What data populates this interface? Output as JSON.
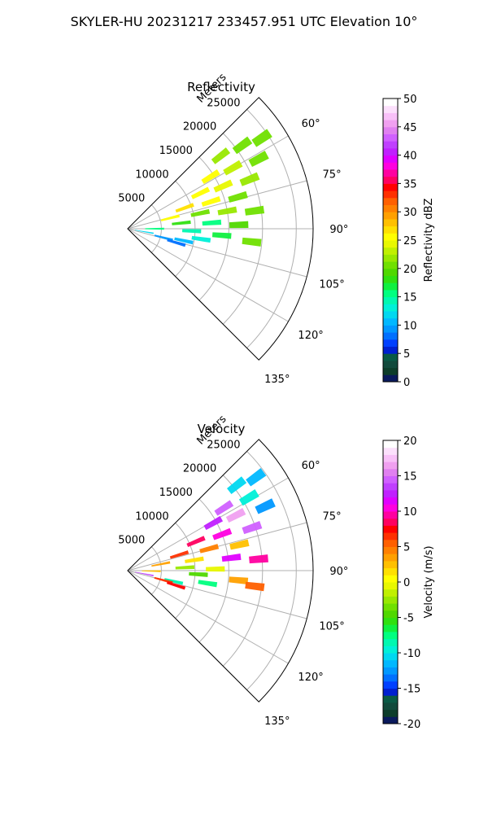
{
  "figure": {
    "title": "SKYLER-HU  20231217  233457.951 UTC Elevation 10°"
  },
  "chart_data": [
    {
      "type": "heatmap",
      "subtype": "polar-sector radar PPI",
      "title": "Reflectivity",
      "radial_axis_label": "Meters",
      "radial_ticks": [
        5000,
        10000,
        15000,
        20000,
        25000
      ],
      "radial_range": [
        0,
        27500
      ],
      "angle_ticks_deg": [
        60,
        75,
        90,
        105,
        120,
        135
      ],
      "angle_tick_labels": [
        "60°",
        "75°",
        "90°",
        "105°",
        "120°",
        "135°"
      ],
      "angle_range_deg": [
        45,
        135
      ],
      "grid": true,
      "colorbar": {
        "label": "Reflectivity dBZ",
        "min": 0,
        "max": 50,
        "ticks": [
          0,
          5,
          10,
          15,
          20,
          25,
          30,
          35,
          40,
          45,
          50
        ],
        "colors": [
          "#0a1a5c",
          "#0d3d2a",
          "#124a3c",
          "#0a5a46",
          "#0020d0",
          "#0040ff",
          "#0070ff",
          "#0098ff",
          "#00b8ff",
          "#00d8f0",
          "#00f0d8",
          "#00f8b0",
          "#00ff80",
          "#10f040",
          "#30e010",
          "#50d800",
          "#70e000",
          "#98e800",
          "#c0f000",
          "#e8f800",
          "#ffff00",
          "#ffe000",
          "#ffc000",
          "#ffa000",
          "#ff8000",
          "#ff6000",
          "#ff3000",
          "#ff0000",
          "#ff0060",
          "#ff00a0",
          "#ff00e0",
          "#e000ff",
          "#c020ff",
          "#c040ff",
          "#d060ff",
          "#e080f0",
          "#f0a0f0",
          "#f8c0f8",
          "#fce0fc",
          "#ffffff"
        ]
      },
      "cells": [
        {
          "az": 52,
          "r": 17500,
          "v": 22
        },
        {
          "az": 54,
          "r": 21000,
          "v": 21
        },
        {
          "az": 56,
          "r": 24000,
          "v": 20
        },
        {
          "az": 58,
          "r": 14500,
          "v": 25
        },
        {
          "az": 60,
          "r": 18000,
          "v": 23
        },
        {
          "az": 62,
          "r": 22000,
          "v": 21
        },
        {
          "az": 64,
          "r": 12000,
          "v": 26
        },
        {
          "az": 66,
          "r": 15500,
          "v": 24
        },
        {
          "az": 68,
          "r": 19500,
          "v": 22
        },
        {
          "az": 70,
          "r": 9000,
          "v": 27
        },
        {
          "az": 72,
          "r": 13000,
          "v": 25
        },
        {
          "az": 74,
          "r": 17000,
          "v": 20
        },
        {
          "az": 76,
          "r": 6500,
          "v": 26
        },
        {
          "az": 78,
          "r": 11000,
          "v": 21
        },
        {
          "az": 80,
          "r": 15000,
          "v": 22
        },
        {
          "az": 82,
          "r": 19000,
          "v": 20
        },
        {
          "az": 84,
          "r": 8000,
          "v": 18
        },
        {
          "az": 86,
          "r": 12500,
          "v": 15
        },
        {
          "az": 88,
          "r": 16500,
          "v": 19
        },
        {
          "az": 90,
          "r": 4000,
          "v": 16
        },
        {
          "az": 92,
          "r": 9500,
          "v": 14
        },
        {
          "az": 94,
          "r": 14000,
          "v": 17
        },
        {
          "az": 96,
          "r": 18500,
          "v": 20
        },
        {
          "az": 98,
          "r": 11000,
          "v": 13
        },
        {
          "az": 100,
          "r": 2500,
          "v": 12
        },
        {
          "az": 102,
          "r": 8500,
          "v": 11
        },
        {
          "az": 104,
          "r": 5500,
          "v": 9
        },
        {
          "az": 106,
          "r": 7500,
          "v": 8
        }
      ]
    },
    {
      "type": "heatmap",
      "subtype": "polar-sector radar PPI",
      "title": "Velocity",
      "radial_axis_label": "Meters",
      "radial_ticks": [
        5000,
        10000,
        15000,
        20000,
        25000
      ],
      "radial_range": [
        0,
        27500
      ],
      "angle_ticks_deg": [
        60,
        75,
        90,
        105,
        120,
        135
      ],
      "angle_tick_labels": [
        "60°",
        "75°",
        "90°",
        "105°",
        "120°",
        "135°"
      ],
      "angle_range_deg": [
        45,
        135
      ],
      "grid": true,
      "colorbar": {
        "label": "Velocity (m/s)",
        "min": -20,
        "max": 20,
        "ticks": [
          -20,
          -15,
          -10,
          -5,
          0,
          5,
          10,
          15,
          20
        ],
        "colors": [
          "#0a1a5c",
          "#0d3d2a",
          "#124a3c",
          "#0a5a46",
          "#0020d0",
          "#0040ff",
          "#0070ff",
          "#0098ff",
          "#00b8ff",
          "#00d8f0",
          "#00f0d8",
          "#00f8b0",
          "#00ff80",
          "#10f040",
          "#30e010",
          "#50d800",
          "#70e000",
          "#98e800",
          "#c0f000",
          "#e8f800",
          "#ffff00",
          "#ffe000",
          "#ffc000",
          "#ffa000",
          "#ff8000",
          "#ff6000",
          "#ff3000",
          "#ff0000",
          "#ff0060",
          "#ff00a0",
          "#ff00e0",
          "#e000ff",
          "#c020ff",
          "#c040ff",
          "#d060ff",
          "#e080f0",
          "#f0a0f0",
          "#f8c0f8",
          "#fce0fc",
          "#ffffff"
        ]
      },
      "cells": [
        {
          "az": 52,
          "r": 20500,
          "v": -11
        },
        {
          "az": 54,
          "r": 23500,
          "v": -12
        },
        {
          "az": 57,
          "r": 17000,
          "v": 14
        },
        {
          "az": 59,
          "r": 21000,
          "v": -10
        },
        {
          "az": 61,
          "r": 14500,
          "v": 12
        },
        {
          "az": 63,
          "r": 18000,
          "v": 16
        },
        {
          "az": 65,
          "r": 22500,
          "v": -13
        },
        {
          "az": 67,
          "r": 11000,
          "v": 8
        },
        {
          "az": 69,
          "r": 15000,
          "v": 10
        },
        {
          "az": 71,
          "r": 19500,
          "v": 14
        },
        {
          "az": 73,
          "r": 8000,
          "v": 6
        },
        {
          "az": 75,
          "r": 12500,
          "v": 4
        },
        {
          "az": 77,
          "r": 17000,
          "v": 2
        },
        {
          "az": 79,
          "r": 5000,
          "v": 3
        },
        {
          "az": 81,
          "r": 10000,
          "v": 1
        },
        {
          "az": 83,
          "r": 15500,
          "v": 11
        },
        {
          "az": 85,
          "r": 19500,
          "v": 9
        },
        {
          "az": 87,
          "r": 8500,
          "v": -3
        },
        {
          "az": 89,
          "r": 13000,
          "v": -1
        },
        {
          "az": 91,
          "r": 3500,
          "v": 2
        },
        {
          "az": 93,
          "r": 10500,
          "v": -5
        },
        {
          "az": 95,
          "r": 16500,
          "v": 3
        },
        {
          "az": 97,
          "r": 19000,
          "v": 5
        },
        {
          "az": 99,
          "r": 12000,
          "v": -8
        },
        {
          "az": 101,
          "r": 2500,
          "v": 13
        },
        {
          "az": 103,
          "r": 7000,
          "v": -9
        },
        {
          "az": 105,
          "r": 5500,
          "v": 6
        },
        {
          "az": 107,
          "r": 7500,
          "v": 7
        }
      ]
    }
  ]
}
